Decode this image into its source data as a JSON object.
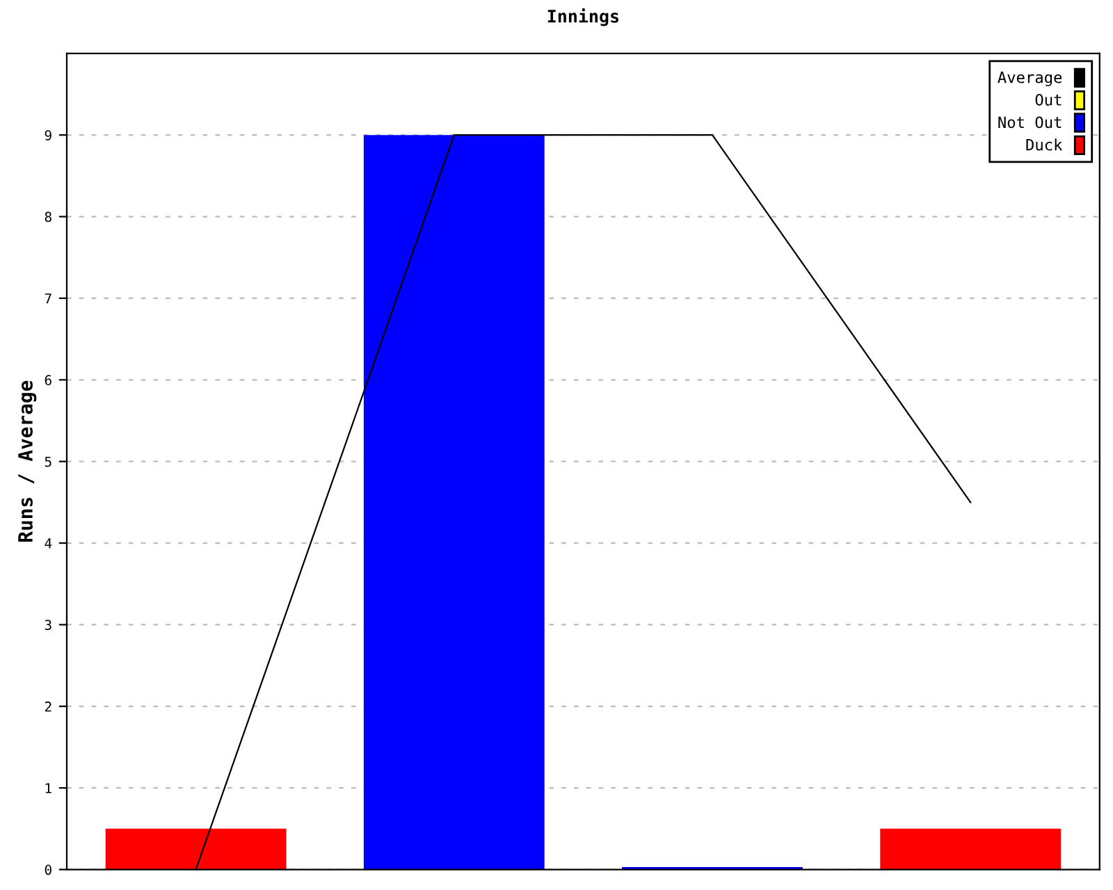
{
  "chart_data": {
    "type": "bar",
    "title": "Innings",
    "ylabel": "Runs / Average",
    "categories": [
      null,
      null,
      null,
      null
    ],
    "series": [
      {
        "name": "Average",
        "type": "line",
        "color": "#000000",
        "values": [
          0,
          9,
          9,
          4.5
        ]
      },
      {
        "name": "Out",
        "color": "#ffff00",
        "values": [
          null,
          null,
          null,
          null
        ]
      },
      {
        "name": "Not Out",
        "color": "#0000ff",
        "values": [
          null,
          9,
          0.03,
          null
        ]
      },
      {
        "name": "Duck",
        "color": "#ff0000",
        "values": [
          0.5,
          null,
          null,
          0.5
        ]
      }
    ],
    "ylim": [
      0,
      10
    ],
    "yticks": [
      0,
      1,
      2,
      3,
      4,
      5,
      6,
      7,
      8,
      9
    ],
    "grid": "y",
    "legend": "top right",
    "marker": "none"
  }
}
